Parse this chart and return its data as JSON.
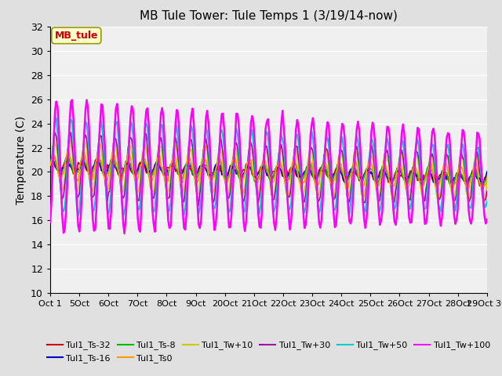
{
  "title": "MB Tule Tower: Tule Temps 1 (3/19/14-now)",
  "ylabel": "Temperature (C)",
  "ylim": [
    10,
    32
  ],
  "yticks": [
    10,
    12,
    14,
    16,
    18,
    20,
    22,
    24,
    26,
    28,
    30,
    32
  ],
  "xtick_labels": [
    "Oct 1",
    "5Oct",
    "6Oct",
    "7Oct",
    "8Oct",
    "9Oct",
    "20Oct",
    "21Oct",
    "22Oct",
    "23Oct",
    "24Oct",
    "25Oct",
    "26Oct",
    "27Oct",
    "28Oct",
    "29Oct 30"
  ],
  "annotation_label": "MB_tule",
  "annotation_text_color": "#cc0000",
  "annotation_bg_color": "#ffffcc",
  "annotation_edge_color": "#999900",
  "background_color": "#e0e0e0",
  "plot_bg_color": "#f0f0f0",
  "grid_color": "#ffffff",
  "series": {
    "Tul1_Ts-32": {
      "color": "#cc0000",
      "lw": 1.2,
      "zorder": 3
    },
    "Tul1_Ts-16": {
      "color": "#0000cc",
      "lw": 1.2,
      "zorder": 3
    },
    "Tul1_Ts-8": {
      "color": "#00bb00",
      "lw": 1.2,
      "zorder": 3
    },
    "Tul1_Ts0": {
      "color": "#ff9900",
      "lw": 1.2,
      "zorder": 3
    },
    "Tul1_Tw+10": {
      "color": "#cccc00",
      "lw": 1.2,
      "zorder": 2
    },
    "Tul1_Tw+30": {
      "color": "#aa00aa",
      "lw": 1.2,
      "zorder": 2
    },
    "Tul1_Tw+50": {
      "color": "#00cccc",
      "lw": 1.5,
      "zorder": 2
    },
    "Tul1_Tw+100": {
      "color": "#ff00ff",
      "lw": 1.8,
      "zorder": 4
    }
  },
  "legend_order": [
    "Tul1_Ts-32",
    "Tul1_Ts-16",
    "Tul1_Ts-8",
    "Tul1_Ts0",
    "Tul1_Tw+10",
    "Tul1_Tw+30",
    "Tul1_Tw+50",
    "Tul1_Tw+100"
  ],
  "legend_ncol1": 6,
  "legend_ncol2": 2
}
